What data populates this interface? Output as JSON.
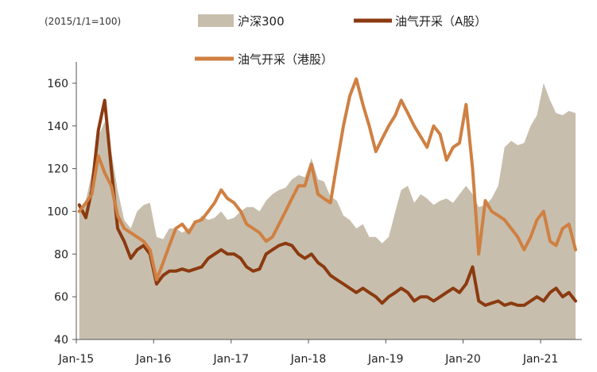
{
  "chart_data": {
    "type": "area",
    "unit_note": "(2015/1/1=100)",
    "x_ticks": [
      "Jan-15",
      "Jan-16",
      "Jan-17",
      "Jan-18",
      "Jan-19",
      "Jan-20",
      "Jan-21"
    ],
    "y_ticks": [
      40,
      60,
      80,
      100,
      120,
      140,
      160
    ],
    "ylim": [
      40,
      170
    ],
    "xlim": [
      "2015-01-01",
      "2021-07-15"
    ],
    "grid": false,
    "legend_position": "top",
    "series": [
      {
        "name": "沪深300",
        "kind": "area",
        "color": "#c8bead",
        "x": [
          "2015-01",
          "2015-02",
          "2015-03",
          "2015-04",
          "2015-05",
          "2015-06",
          "2015-07",
          "2015-08",
          "2015-09",
          "2015-10",
          "2015-11",
          "2015-12",
          "2016-01",
          "2016-02",
          "2016-03",
          "2016-04",
          "2016-05",
          "2016-06",
          "2016-07",
          "2016-08",
          "2016-09",
          "2016-10",
          "2016-11",
          "2016-12",
          "2017-01",
          "2017-02",
          "2017-03",
          "2017-04",
          "2017-05",
          "2017-06",
          "2017-07",
          "2017-08",
          "2017-09",
          "2017-10",
          "2017-11",
          "2017-12",
          "2018-01",
          "2018-02",
          "2018-03",
          "2018-04",
          "2018-05",
          "2018-06",
          "2018-07",
          "2018-08",
          "2018-09",
          "2018-10",
          "2018-11",
          "2018-12",
          "2019-01",
          "2019-02",
          "2019-03",
          "2019-04",
          "2019-05",
          "2019-06",
          "2019-07",
          "2019-08",
          "2019-09",
          "2019-10",
          "2019-11",
          "2019-12",
          "2020-01",
          "2020-02",
          "2020-03",
          "2020-04",
          "2020-05",
          "2020-06",
          "2020-07",
          "2020-08",
          "2020-09",
          "2020-10",
          "2020-11",
          "2020-12",
          "2021-01",
          "2021-02",
          "2021-03",
          "2021-04",
          "2021-05",
          "2021-06"
        ],
        "values": [
          100,
          105,
          118,
          135,
          142,
          128,
          110,
          96,
          92,
          100,
          103,
          104,
          88,
          87,
          92,
          92,
          90,
          92,
          94,
          98,
          96,
          97,
          100,
          96,
          97,
          100,
          102,
          102,
          100,
          105,
          108,
          110,
          111,
          115,
          117,
          116,
          125,
          115,
          114,
          107,
          105,
          98,
          96,
          92,
          94,
          88,
          88,
          85,
          88,
          100,
          110,
          112,
          104,
          108,
          106,
          103,
          105,
          106,
          104,
          108,
          112,
          108,
          102,
          103,
          106,
          112,
          130,
          133,
          131,
          132,
          140,
          145,
          160,
          152,
          146,
          145,
          147,
          146
        ]
      },
      {
        "name": "油气开采（A股）",
        "kind": "line",
        "color": "#8b3a10",
        "x": [
          "2015-01",
          "2015-02",
          "2015-03",
          "2015-04",
          "2015-05",
          "2015-06",
          "2015-07",
          "2015-08",
          "2015-09",
          "2015-10",
          "2015-11",
          "2015-12",
          "2016-01",
          "2016-02",
          "2016-03",
          "2016-04",
          "2016-05",
          "2016-06",
          "2016-07",
          "2016-08",
          "2016-09",
          "2016-10",
          "2016-11",
          "2016-12",
          "2017-01",
          "2017-02",
          "2017-03",
          "2017-04",
          "2017-05",
          "2017-06",
          "2017-07",
          "2017-08",
          "2017-09",
          "2017-10",
          "2017-11",
          "2017-12",
          "2018-01",
          "2018-02",
          "2018-03",
          "2018-04",
          "2018-05",
          "2018-06",
          "2018-07",
          "2018-08",
          "2018-09",
          "2018-10",
          "2018-11",
          "2018-12",
          "2019-01",
          "2019-02",
          "2019-03",
          "2019-04",
          "2019-05",
          "2019-06",
          "2019-07",
          "2019-08",
          "2019-09",
          "2019-10",
          "2019-11",
          "2019-12",
          "2020-01",
          "2020-02",
          "2020-03",
          "2020-04",
          "2020-05",
          "2020-06",
          "2020-07",
          "2020-08",
          "2020-09",
          "2020-10",
          "2020-11",
          "2020-12",
          "2021-01",
          "2021-02",
          "2021-03",
          "2021-04",
          "2021-05",
          "2021-06"
        ],
        "values": [
          103,
          97,
          110,
          138,
          152,
          120,
          92,
          86,
          78,
          82,
          84,
          80,
          66,
          70,
          72,
          72,
          73,
          72,
          73,
          74,
          78,
          80,
          82,
          80,
          80,
          78,
          74,
          72,
          73,
          80,
          82,
          84,
          85,
          84,
          80,
          78,
          80,
          76,
          74,
          70,
          68,
          66,
          64,
          62,
          64,
          62,
          60,
          57,
          60,
          62,
          64,
          62,
          58,
          60,
          60,
          58,
          60,
          62,
          64,
          62,
          66,
          74,
          58,
          56,
          57,
          58,
          56,
          57,
          56,
          56,
          58,
          60,
          58,
          62,
          64,
          60,
          62,
          58
        ]
      },
      {
        "name": "油气开采（港股）",
        "kind": "line",
        "color": "#cf8042",
        "x": [
          "2015-01",
          "2015-02",
          "2015-03",
          "2015-04",
          "2015-05",
          "2015-06",
          "2015-07",
          "2015-08",
          "2015-09",
          "2015-10",
          "2015-11",
          "2015-12",
          "2016-01",
          "2016-02",
          "2016-03",
          "2016-04",
          "2016-05",
          "2016-06",
          "2016-07",
          "2016-08",
          "2016-09",
          "2016-10",
          "2016-11",
          "2016-12",
          "2017-01",
          "2017-02",
          "2017-03",
          "2017-04",
          "2017-05",
          "2017-06",
          "2017-07",
          "2017-08",
          "2017-09",
          "2017-10",
          "2017-11",
          "2017-12",
          "2018-01",
          "2018-02",
          "2018-03",
          "2018-04",
          "2018-05",
          "2018-06",
          "2018-07",
          "2018-08",
          "2018-09",
          "2018-10",
          "2018-11",
          "2018-12",
          "2019-01",
          "2019-02",
          "2019-03",
          "2019-04",
          "2019-05",
          "2019-06",
          "2019-07",
          "2019-08",
          "2019-09",
          "2019-10",
          "2019-11",
          "2019-12",
          "2020-01",
          "2020-02",
          "2020-03",
          "2020-04",
          "2020-05",
          "2020-06",
          "2020-07",
          "2020-08",
          "2020-09",
          "2020-10",
          "2020-11",
          "2020-12",
          "2021-01",
          "2021-02",
          "2021-03",
          "2021-04",
          "2021-05",
          "2021-06"
        ],
        "values": [
          100,
          104,
          108,
          126,
          118,
          112,
          98,
          92,
          90,
          88,
          86,
          82,
          68,
          76,
          84,
          92,
          94,
          90,
          95,
          96,
          100,
          104,
          110,
          106,
          104,
          100,
          94,
          92,
          90,
          86,
          88,
          94,
          100,
          106,
          112,
          112,
          122,
          108,
          106,
          104,
          122,
          140,
          154,
          162,
          150,
          140,
          128,
          134,
          140,
          145,
          152,
          146,
          140,
          135,
          130,
          140,
          136,
          124,
          130,
          132,
          150,
          120,
          80,
          105,
          100,
          98,
          96,
          92,
          88,
          82,
          88,
          96,
          100,
          86,
          84,
          92,
          94,
          82
        ]
      }
    ]
  }
}
